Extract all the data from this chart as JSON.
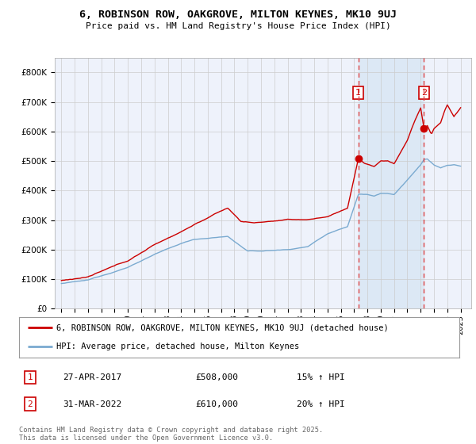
{
  "title": "6, ROBINSON ROW, OAKGROVE, MILTON KEYNES, MK10 9UJ",
  "subtitle": "Price paid vs. HM Land Registry's House Price Index (HPI)",
  "red_label": "6, ROBINSON ROW, OAKGROVE, MILTON KEYNES, MK10 9UJ (detached house)",
  "blue_label": "HPI: Average price, detached house, Milton Keynes",
  "transaction1_date": "27-APR-2017",
  "transaction1_price": 508000,
  "transaction1_pct": "15% ↑ HPI",
  "transaction1_year": 2017.32,
  "transaction2_date": "31-MAR-2022",
  "transaction2_price": 610000,
  "transaction2_pct": "20% ↑ HPI",
  "transaction2_year": 2022.25,
  "ylim_min": 0,
  "ylim_max": 850000,
  "xlim_min": 1994.5,
  "xlim_max": 2025.8,
  "footer": "Contains HM Land Registry data © Crown copyright and database right 2025.\nThis data is licensed under the Open Government Licence v3.0.",
  "background_color": "#ffffff",
  "plot_bg_color": "#eef2fb",
  "grid_color": "#cccccc",
  "red_color": "#cc0000",
  "blue_color": "#7aaad0",
  "dashed_color": "#dd4444",
  "shade_color": "#dce8f5"
}
